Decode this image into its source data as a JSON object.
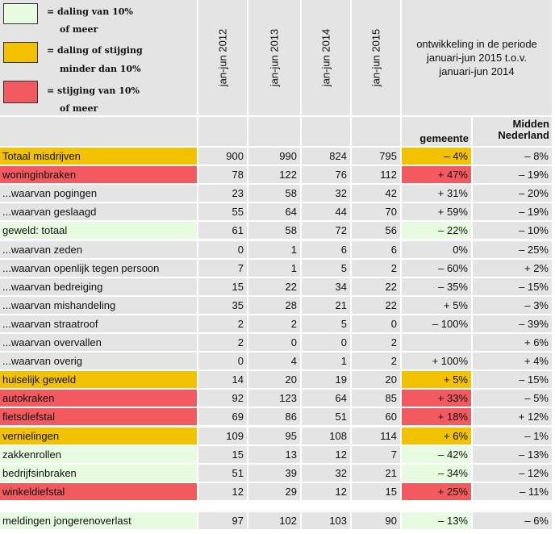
{
  "legend": [
    {
      "color": "#e6fbe0",
      "line1": "= daling van 10%",
      "line2": "of meer"
    },
    {
      "color": "#f2c200",
      "line1": "= daling of stijging",
      "line2": "minder dan 10%"
    },
    {
      "color": "#f25a5f",
      "line1": "= stijging van 10%",
      "line2": "of meer"
    }
  ],
  "columns": {
    "y2012": "jan-jun 2012",
    "y2013": "jan-jun 2013",
    "y2014": "jan-jun 2014",
    "y2015": "jan-jun 2015",
    "development": "ontwikkeling in de periode januari-jun 2015 t.o.v. januari-jun 2014",
    "gemeente": "gemeente",
    "midden_line1": "Midden",
    "midden_line2": "Nederland"
  },
  "colors": {
    "green": "#e6fbe0",
    "yellow": "#f2c200",
    "red": "#f25a5f",
    "grey": "#e4e4e4"
  },
  "rows": [
    {
      "label": "Totaal misdrijven",
      "status": "yellow",
      "v2012": "900",
      "v2013": "990",
      "v2014": "824",
      "v2015": "795",
      "gemeente": "– 4%",
      "midden": "– 8%"
    },
    {
      "label": "woninginbraken",
      "status": "red",
      "v2012": "78",
      "v2013": "122",
      "v2014": "76",
      "v2015": "112",
      "gemeente": "+ 47%",
      "midden": "– 19%"
    },
    {
      "label": "...waarvan pogingen",
      "status": "none",
      "v2012": "23",
      "v2013": "58",
      "v2014": "32",
      "v2015": "42",
      "gemeente": "+ 31%",
      "midden": "– 20%"
    },
    {
      "label": "...waarvan geslaagd",
      "status": "none",
      "v2012": "55",
      "v2013": "64",
      "v2014": "44",
      "v2015": "70",
      "gemeente": "+ 59%",
      "midden": "– 19%"
    },
    {
      "label": "geweld: totaal",
      "status": "green",
      "v2012": "61",
      "v2013": "58",
      "v2014": "72",
      "v2015": "56",
      "gemeente": "– 22%",
      "midden": "– 10%"
    },
    {
      "label": "...waarvan zeden",
      "status": "none",
      "v2012": "0",
      "v2013": "1",
      "v2014": "6",
      "v2015": "6",
      "gemeente": "0%",
      "midden": "– 25%"
    },
    {
      "label": "...waarvan openlijk tegen persoon",
      "status": "none",
      "v2012": "7",
      "v2013": "1",
      "v2014": "5",
      "v2015": "2",
      "gemeente": "– 60%",
      "midden": "+ 2%"
    },
    {
      "label": "...waarvan bedreiging",
      "status": "none",
      "v2012": "15",
      "v2013": "22",
      "v2014": "34",
      "v2015": "22",
      "gemeente": "– 35%",
      "midden": "– 15%"
    },
    {
      "label": "...waarvan mishandeling",
      "status": "none",
      "v2012": "35",
      "v2013": "28",
      "v2014": "21",
      "v2015": "22",
      "gemeente": "+ 5%",
      "midden": "– 3%"
    },
    {
      "label": "...waarvan straatroof",
      "status": "none",
      "v2012": "2",
      "v2013": "2",
      "v2014": "5",
      "v2015": "0",
      "gemeente": "– 100%",
      "midden": "– 39%"
    },
    {
      "label": "...waarvan overvallen",
      "status": "none",
      "v2012": "2",
      "v2013": "0",
      "v2014": "0",
      "v2015": "2",
      "gemeente": "",
      "midden": "+ 6%"
    },
    {
      "label": "...waarvan overig",
      "status": "none",
      "v2012": "0",
      "v2013": "4",
      "v2014": "1",
      "v2015": "2",
      "gemeente": "+ 100%",
      "midden": "+ 4%"
    },
    {
      "label": "huiselijk geweld",
      "status": "yellow",
      "v2012": "14",
      "v2013": "20",
      "v2014": "19",
      "v2015": "20",
      "gemeente": "+ 5%",
      "midden": "– 15%"
    },
    {
      "label": "autokraken",
      "status": "red",
      "v2012": "92",
      "v2013": "123",
      "v2014": "64",
      "v2015": "85",
      "gemeente": "+ 33%",
      "midden": "– 5%"
    },
    {
      "label": "fietsdiefstal",
      "status": "red",
      "v2012": "69",
      "v2013": "86",
      "v2014": "51",
      "v2015": "60",
      "gemeente": "+ 18%",
      "midden": "+ 12%"
    },
    {
      "label": "vernielingen",
      "status": "yellow",
      "v2012": "109",
      "v2013": "95",
      "v2014": "108",
      "v2015": "114",
      "gemeente": "+ 6%",
      "midden": "– 1%"
    },
    {
      "label": "zakkenrollen",
      "status": "green",
      "v2012": "15",
      "v2013": "13",
      "v2014": "12",
      "v2015": "7",
      "gemeente": "– 42%",
      "midden": "– 13%"
    },
    {
      "label": "bedrijfsinbraken",
      "status": "green",
      "v2012": "51",
      "v2013": "39",
      "v2014": "32",
      "v2015": "21",
      "gemeente": "– 34%",
      "midden": "– 12%"
    },
    {
      "label": "winkeldiefstal",
      "status": "red",
      "v2012": "12",
      "v2013": "29",
      "v2014": "12",
      "v2015": "15",
      "gemeente": "+ 25%",
      "midden": "– 11%"
    }
  ],
  "extra_row": {
    "label": "meldingen jongerenoverlast",
    "status": "green",
    "v2012": "97",
    "v2013": "102",
    "v2014": "103",
    "v2015": "90",
    "gemeente": "– 13%",
    "midden": "– 6%"
  }
}
